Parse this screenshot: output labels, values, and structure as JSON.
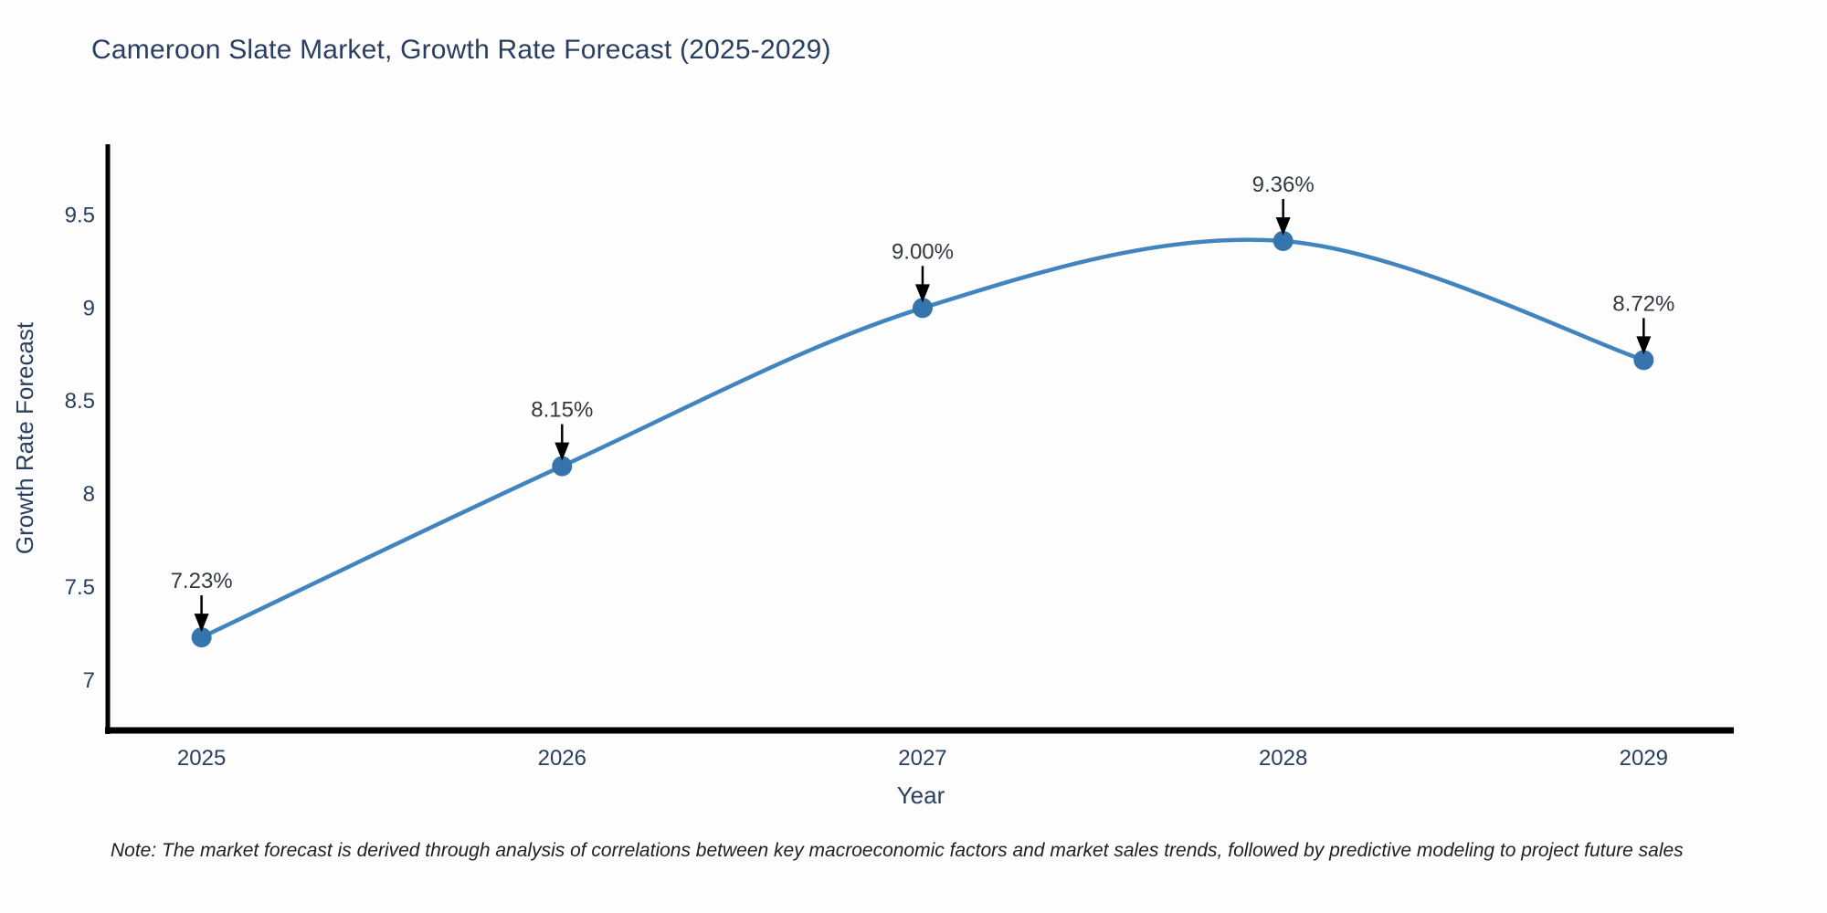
{
  "title": "Cameroon Slate Market, Growth Rate Forecast (2025-2029)",
  "note": "Note: The market forecast is derived through analysis of correlations between key macroeconomic factors and market sales trends, followed by predictive modeling to project future sales",
  "chart_data": {
    "type": "line",
    "title": "Cameroon Slate Market, Growth Rate Forecast (2025-2029)",
    "xlabel": "Year",
    "ylabel": "Growth Rate Forecast",
    "x": [
      2025,
      2026,
      2027,
      2028,
      2029
    ],
    "values": [
      7.23,
      8.15,
      9.0,
      9.36,
      8.72
    ],
    "point_labels": [
      "7.23%",
      "8.15%",
      "9.00%",
      "9.36%",
      "8.72%"
    ],
    "xticks": [
      "2025",
      "2026",
      "2027",
      "2028",
      "2029"
    ],
    "yticks": [
      7,
      7.5,
      8,
      8.5,
      9,
      9.5
    ],
    "ytick_labels": [
      "7",
      "7.5",
      "8",
      "8.5",
      "9",
      "9.5"
    ],
    "xlim": [
      2024.74,
      2029.25
    ],
    "ylim": [
      6.73,
      9.87
    ],
    "line_shape": "spline",
    "grid": false,
    "legend": "none",
    "colors": {
      "line": "#4284bd",
      "marker": "#3674ad",
      "axis_line": "#000000",
      "tick_text": "#2a3f5f",
      "axis_title_text": "#2a3f5f",
      "annotation_text": "#33383f",
      "annotation_arrow": "#000000",
      "background": "#fdfdfd"
    }
  }
}
